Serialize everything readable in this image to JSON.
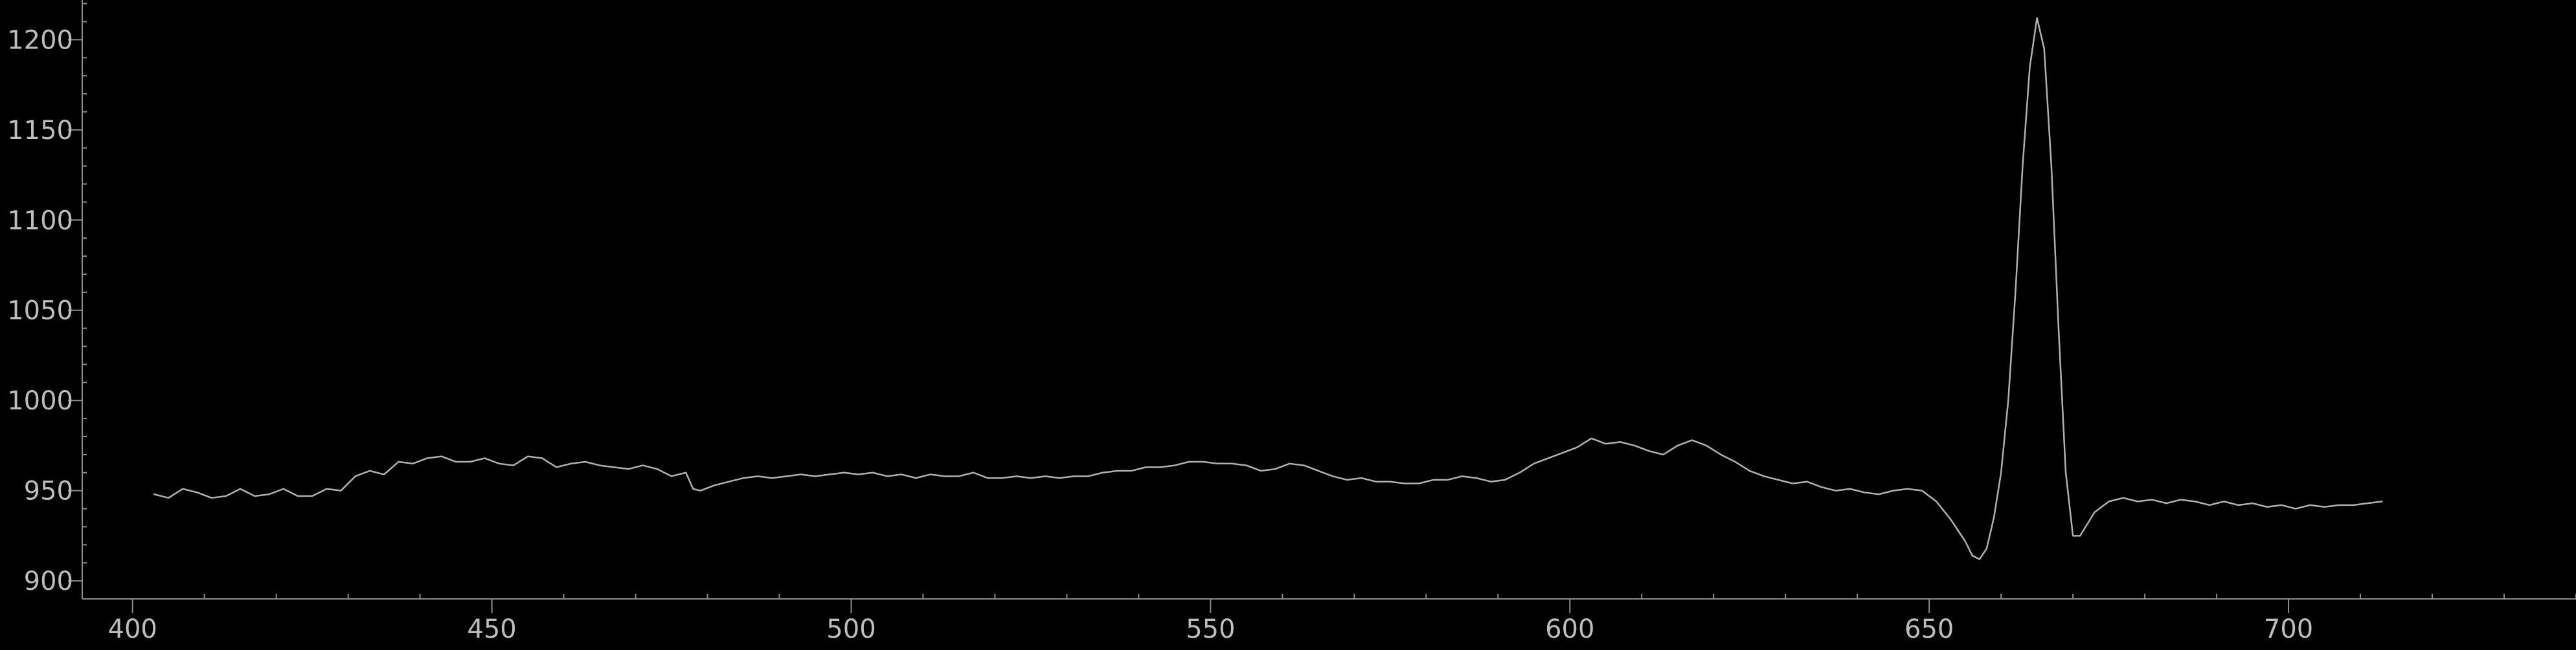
{
  "colors": {
    "background": "#000000",
    "axis": "#8c8c8c",
    "tick_label": "#bdbdbd",
    "line": "#b0b0b0"
  },
  "chart_data": {
    "type": "line",
    "title": "",
    "xlabel": "",
    "ylabel": "",
    "xlim": [
      393,
      740
    ],
    "ylim": [
      890,
      1222
    ],
    "grid": false,
    "legend": "none",
    "x_ticks": [
      400,
      450,
      500,
      550,
      600,
      650,
      700
    ],
    "x_tick_labels": [
      "400",
      "450",
      "500",
      "550",
      "600",
      "650",
      "700"
    ],
    "y_ticks": [
      900,
      950,
      1000,
      1050,
      1100,
      1150,
      1200
    ],
    "y_tick_labels": [
      "900",
      "950",
      "1000",
      "1050",
      "1100",
      "1150",
      "1200"
    ],
    "series": [
      {
        "points": [
          [
            403,
            948
          ],
          [
            405,
            946
          ],
          [
            407,
            951
          ],
          [
            409,
            949
          ],
          [
            411,
            946
          ],
          [
            413,
            947
          ],
          [
            415,
            951
          ],
          [
            417,
            947
          ],
          [
            419,
            948
          ],
          [
            421,
            951
          ],
          [
            423,
            947
          ],
          [
            425,
            947
          ],
          [
            427,
            951
          ],
          [
            429,
            950
          ],
          [
            431,
            958
          ],
          [
            433,
            961
          ],
          [
            435,
            959
          ],
          [
            437,
            966
          ],
          [
            439,
            965
          ],
          [
            441,
            968
          ],
          [
            443,
            969
          ],
          [
            445,
            966
          ],
          [
            447,
            966
          ],
          [
            449,
            968
          ],
          [
            451,
            965
          ],
          [
            453,
            964
          ],
          [
            455,
            969
          ],
          [
            457,
            968
          ],
          [
            459,
            963
          ],
          [
            461,
            965
          ],
          [
            463,
            966
          ],
          [
            465,
            964
          ],
          [
            467,
            963
          ],
          [
            469,
            962
          ],
          [
            471,
            964
          ],
          [
            473,
            962
          ],
          [
            475,
            958
          ],
          [
            477,
            960
          ],
          [
            478,
            951
          ],
          [
            479,
            950
          ],
          [
            481,
            953
          ],
          [
            483,
            955
          ],
          [
            485,
            957
          ],
          [
            487,
            958
          ],
          [
            489,
            957
          ],
          [
            491,
            958
          ],
          [
            493,
            959
          ],
          [
            495,
            958
          ],
          [
            497,
            959
          ],
          [
            499,
            960
          ],
          [
            501,
            959
          ],
          [
            503,
            960
          ],
          [
            505,
            958
          ],
          [
            507,
            959
          ],
          [
            509,
            957
          ],
          [
            511,
            959
          ],
          [
            513,
            958
          ],
          [
            515,
            958
          ],
          [
            517,
            960
          ],
          [
            519,
            957
          ],
          [
            521,
            957
          ],
          [
            523,
            958
          ],
          [
            525,
            957
          ],
          [
            527,
            958
          ],
          [
            529,
            957
          ],
          [
            531,
            958
          ],
          [
            533,
            958
          ],
          [
            535,
            960
          ],
          [
            537,
            961
          ],
          [
            539,
            961
          ],
          [
            541,
            963
          ],
          [
            543,
            963
          ],
          [
            545,
            964
          ],
          [
            547,
            966
          ],
          [
            549,
            966
          ],
          [
            551,
            965
          ],
          [
            553,
            965
          ],
          [
            555,
            964
          ],
          [
            557,
            961
          ],
          [
            559,
            962
          ],
          [
            561,
            965
          ],
          [
            563,
            964
          ],
          [
            565,
            961
          ],
          [
            567,
            958
          ],
          [
            569,
            956
          ],
          [
            571,
            957
          ],
          [
            573,
            955
          ],
          [
            575,
            955
          ],
          [
            577,
            954
          ],
          [
            579,
            954
          ],
          [
            581,
            956
          ],
          [
            583,
            956
          ],
          [
            585,
            958
          ],
          [
            587,
            957
          ],
          [
            589,
            955
          ],
          [
            591,
            956
          ],
          [
            593,
            960
          ],
          [
            595,
            965
          ],
          [
            597,
            968
          ],
          [
            599,
            971
          ],
          [
            601,
            974
          ],
          [
            603,
            979
          ],
          [
            605,
            976
          ],
          [
            607,
            977
          ],
          [
            609,
            975
          ],
          [
            611,
            972
          ],
          [
            613,
            970
          ],
          [
            615,
            975
          ],
          [
            617,
            978
          ],
          [
            619,
            975
          ],
          [
            621,
            970
          ],
          [
            623,
            966
          ],
          [
            625,
            961
          ],
          [
            627,
            958
          ],
          [
            629,
            956
          ],
          [
            631,
            954
          ],
          [
            633,
            955
          ],
          [
            635,
            952
          ],
          [
            637,
            950
          ],
          [
            639,
            951
          ],
          [
            641,
            949
          ],
          [
            643,
            948
          ],
          [
            645,
            950
          ],
          [
            647,
            951
          ],
          [
            649,
            950
          ],
          [
            651,
            944
          ],
          [
            653,
            934
          ],
          [
            655,
            922
          ],
          [
            656,
            914
          ],
          [
            657,
            912
          ],
          [
            658,
            918
          ],
          [
            659,
            935
          ],
          [
            660,
            960
          ],
          [
            661,
            1000
          ],
          [
            662,
            1060
          ],
          [
            663,
            1130
          ],
          [
            664,
            1185
          ],
          [
            665,
            1212
          ],
          [
            666,
            1195
          ],
          [
            667,
            1130
          ],
          [
            668,
            1040
          ],
          [
            669,
            960
          ],
          [
            670,
            925
          ],
          [
            671,
            925
          ],
          [
            673,
            938
          ],
          [
            675,
            944
          ],
          [
            677,
            946
          ],
          [
            679,
            944
          ],
          [
            681,
            945
          ],
          [
            683,
            943
          ],
          [
            685,
            945
          ],
          [
            687,
            944
          ],
          [
            689,
            942
          ],
          [
            691,
            944
          ],
          [
            693,
            942
          ],
          [
            695,
            943
          ],
          [
            697,
            941
          ],
          [
            699,
            942
          ],
          [
            701,
            940
          ],
          [
            703,
            942
          ],
          [
            705,
            941
          ],
          [
            707,
            942
          ],
          [
            709,
            942
          ],
          [
            711,
            943
          ],
          [
            713,
            944
          ]
        ]
      }
    ]
  }
}
